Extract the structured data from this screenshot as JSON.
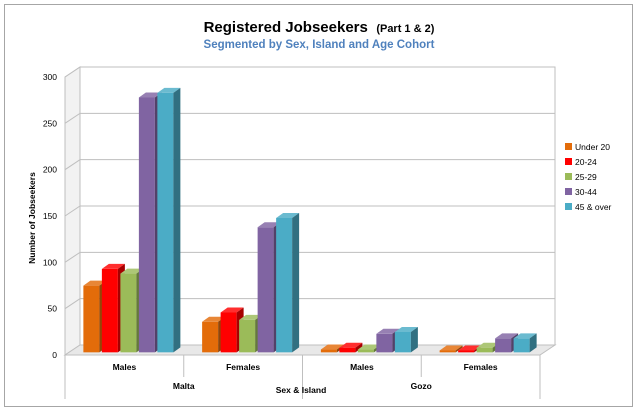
{
  "chart_data": {
    "type": "bar",
    "title": "Registered Jobseekers",
    "title_suffix": "(Part 1 & 2)",
    "subtitle": "Segmented by Sex, Island and Age Cohort",
    "xlabel": "Sex & Island",
    "ylabel": "Number of Jobseekers",
    "ylim": [
      0,
      300
    ],
    "yticks": [
      0,
      50,
      100,
      150,
      200,
      250,
      300
    ],
    "categories": [
      "Males",
      "Females",
      "Males",
      "Females"
    ],
    "groups": [
      {
        "label": "Malta",
        "categories": [
          "Males",
          "Females"
        ]
      },
      {
        "label": "Gozo",
        "categories": [
          "Males",
          "Females"
        ]
      }
    ],
    "series": [
      {
        "name": "Under 20",
        "color": "#E36C0A",
        "values": [
          72,
          33,
          3,
          2
        ]
      },
      {
        "name": "20-24",
        "color": "#FF0000",
        "values": [
          90,
          43,
          5,
          2
        ]
      },
      {
        "name": "25-29",
        "color": "#9BBB59",
        "values": [
          85,
          35,
          3,
          5
        ]
      },
      {
        "name": "30-44",
        "color": "#8064A2",
        "values": [
          275,
          135,
          20,
          15
        ]
      },
      {
        "name": "45 & over",
        "color": "#4BACC6",
        "values": [
          280,
          145,
          22,
          15
        ]
      }
    ],
    "grid": true,
    "legend_position": "right",
    "subtitle_color": "#4F81BD"
  }
}
